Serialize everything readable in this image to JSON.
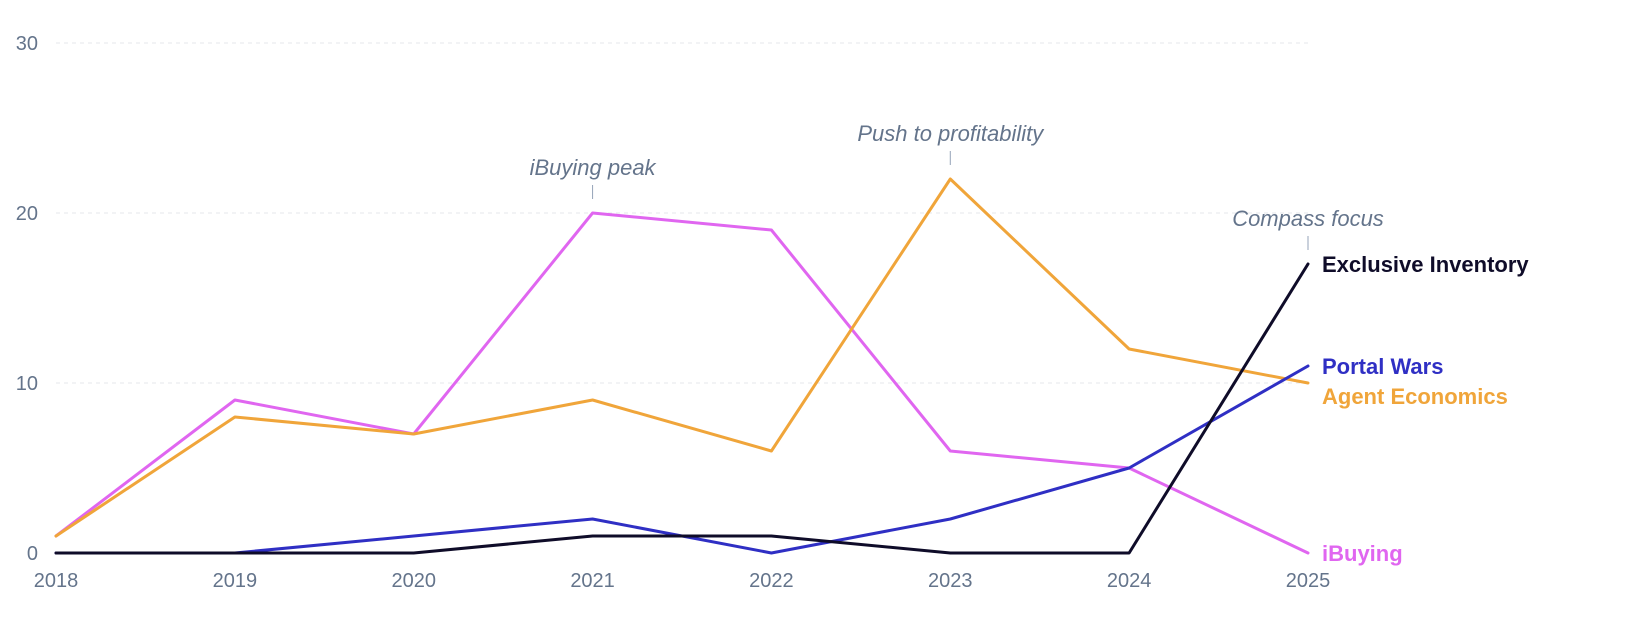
{
  "chart_data": {
    "type": "line",
    "title": "",
    "xlabel": "",
    "ylabel": "",
    "x": [
      "2018",
      "2019",
      "2020",
      "2021",
      "2022",
      "2023",
      "2024",
      "2025"
    ],
    "ylim": [
      0,
      30
    ],
    "yticks": [
      0,
      10,
      20,
      30
    ],
    "grid": true,
    "legend": "inline-right",
    "series": [
      {
        "name": "Exclusive Inventory",
        "color": "#0f0c29",
        "values": [
          0,
          0,
          0,
          1,
          1,
          0,
          0,
          17
        ]
      },
      {
        "name": "Portal Wars",
        "color": "#2f2fc4",
        "values": [
          0,
          0,
          1,
          2,
          0,
          2,
          5,
          11
        ]
      },
      {
        "name": "Agent Economics",
        "color": "#f0a53a",
        "values": [
          1,
          8,
          7,
          9,
          6,
          22,
          12,
          10
        ]
      },
      {
        "name": "iBuying",
        "color": "#e066f0",
        "values": [
          1,
          9,
          7,
          20,
          19,
          6,
          5,
          0
        ]
      }
    ],
    "annotations": [
      {
        "text": "iBuying peak",
        "x": "2021",
        "y": 20
      },
      {
        "text": "Push to profitability",
        "x": "2023",
        "y": 22
      },
      {
        "text": "Compass focus",
        "x": "2025",
        "y": 17
      }
    ]
  }
}
